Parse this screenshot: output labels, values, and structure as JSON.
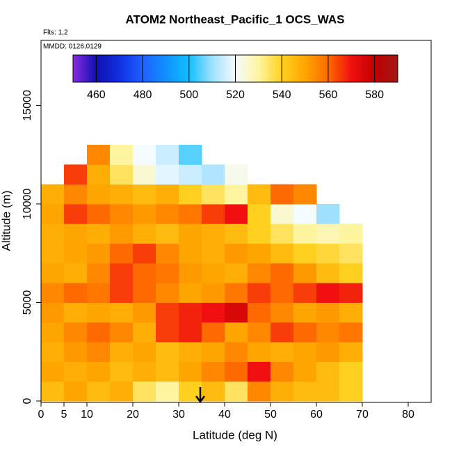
{
  "chart_data": {
    "type": "heatmap",
    "title": "ATOM2 Northeast_Pacific_1 OCS_WAS",
    "subtitle": "Flts: 1,2",
    "annotation": "MMDD: 0126,0129",
    "x_label": "Latitude (deg N)",
    "y_label": "Altitude (m)",
    "xlim": [
      0,
      85
    ],
    "ylim": [
      0,
      18300
    ],
    "xticks": [
      0,
      5,
      10,
      20,
      30,
      40,
      50,
      60,
      70,
      80
    ],
    "yticks": [
      0,
      5000,
      10000,
      15000
    ],
    "x_bins": [
      0,
      5,
      10,
      15,
      20,
      25,
      30,
      35,
      40,
      45,
      50,
      55,
      60,
      65,
      70,
      75
    ],
    "y_bins": [
      0,
      1000,
      2000,
      3000,
      4000,
      5000,
      6000,
      7000,
      8000,
      9000,
      10000,
      11000,
      12000,
      13000
    ],
    "z": [
      [
        545,
        550,
        545,
        548,
        535,
        530,
        540,
        545,
        535,
        555,
        548,
        545,
        545,
        540,
        null
      ],
      [
        550,
        548,
        550,
        545,
        548,
        545,
        550,
        555,
        560,
        570,
        555,
        550,
        545,
        540,
        null
      ],
      [
        548,
        552,
        555,
        548,
        550,
        545,
        548,
        550,
        555,
        550,
        548,
        550,
        552,
        548,
        null
      ],
      [
        550,
        555,
        560,
        555,
        548,
        565,
        568,
        560,
        550,
        555,
        565,
        560,
        555,
        558,
        null
      ],
      [
        552,
        548,
        550,
        548,
        552,
        565,
        568,
        570,
        575,
        560,
        555,
        550,
        552,
        548,
        null
      ],
      [
        555,
        560,
        558,
        565,
        560,
        555,
        550,
        552,
        558,
        565,
        560,
        565,
        570,
        568,
        null
      ],
      [
        550,
        548,
        555,
        565,
        560,
        558,
        552,
        550,
        548,
        555,
        560,
        552,
        545,
        540,
        null
      ],
      [
        548,
        550,
        552,
        560,
        565,
        555,
        550,
        548,
        552,
        550,
        545,
        540,
        538,
        535,
        null
      ],
      [
        548,
        550,
        548,
        552,
        548,
        545,
        550,
        548,
        545,
        540,
        535,
        530,
        528,
        530,
        null
      ],
      [
        550,
        565,
        560,
        555,
        552,
        555,
        558,
        565,
        570,
        540,
        525,
        520,
        510,
        null,
        null
      ],
      [
        548,
        555,
        550,
        548,
        545,
        548,
        540,
        535,
        530,
        545,
        560,
        555,
        null,
        null,
        null
      ],
      [
        null,
        565,
        548,
        535,
        525,
        518,
        515,
        512,
        522,
        null,
        null,
        null,
        null,
        null,
        null
      ],
      [
        null,
        null,
        555,
        530,
        520,
        515,
        505,
        null,
        null,
        null,
        null,
        null,
        null,
        null,
        null
      ]
    ],
    "colorbar": {
      "lim": [
        450,
        590
      ],
      "ticks": [
        460,
        480,
        500,
        520,
        540,
        560,
        580
      ],
      "colors": [
        "#8a2be2",
        "#1010b0",
        "#1030e0",
        "#2060ff",
        "#1090ff",
        "#10c0ff",
        "#a0e0ff",
        "#f4fbff",
        "#fff4a0",
        "#ffd020",
        "#ffa500",
        "#ff6a00",
        "#f01010",
        "#c00000",
        "#a01818"
      ]
    }
  }
}
